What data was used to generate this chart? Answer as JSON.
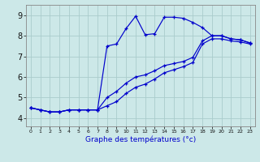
{
  "xlabel": "Graphe des températures (°c)",
  "background_color": "#cce8e8",
  "grid_color": "#aacccc",
  "line_color": "#0000cc",
  "x_ticks": [
    0,
    1,
    2,
    3,
    4,
    5,
    6,
    7,
    8,
    9,
    10,
    11,
    12,
    13,
    14,
    15,
    16,
    17,
    18,
    19,
    20,
    21,
    22,
    23
  ],
  "y_ticks": [
    4,
    5,
    6,
    7,
    8,
    9
  ],
  "ylim": [
    3.6,
    9.5
  ],
  "xlim": [
    -0.5,
    23.5
  ],
  "curve1_y": [
    4.5,
    4.4,
    4.3,
    4.3,
    4.4,
    4.4,
    4.4,
    4.4,
    7.5,
    7.6,
    8.35,
    8.95,
    8.05,
    8.1,
    8.9,
    8.9,
    8.85,
    8.65,
    8.4,
    8.0,
    8.0,
    7.85,
    7.8,
    7.65
  ],
  "curve2_y": [
    4.5,
    4.4,
    4.3,
    4.3,
    4.4,
    4.4,
    4.4,
    4.4,
    5.0,
    5.3,
    5.7,
    6.0,
    6.1,
    6.3,
    6.55,
    6.65,
    6.75,
    6.95,
    7.75,
    8.0,
    8.0,
    7.85,
    7.8,
    7.65
  ],
  "curve3_y": [
    4.5,
    4.4,
    4.3,
    4.3,
    4.4,
    4.4,
    4.4,
    4.4,
    4.6,
    4.8,
    5.2,
    5.5,
    5.65,
    5.9,
    6.2,
    6.35,
    6.5,
    6.7,
    7.6,
    7.85,
    7.85,
    7.75,
    7.7,
    7.6
  ]
}
